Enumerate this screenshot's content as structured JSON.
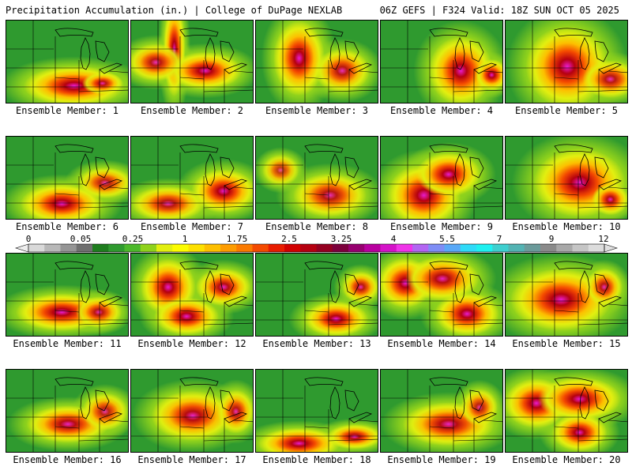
{
  "header": {
    "title": "Precipitation Accumulation (in.) | College of DuPage NEXLAB",
    "run_info": "06Z GEFS | F324 Valid: 18Z SUN OCT 05 2025"
  },
  "colorbar": {
    "tick_labels": [
      "0",
      "0.05",
      "0.25",
      "1",
      "1.75",
      "2.5",
      "3.25",
      "4",
      "5.5",
      "7",
      "9",
      "12"
    ],
    "colors": [
      "#d9d9d9",
      "#b8b8b8",
      "#959595",
      "#6f6f6f",
      "#1e7d1e",
      "#2f9a2f",
      "#4cb82b",
      "#8fd21c",
      "#e2ef10",
      "#fcfc00",
      "#fde000",
      "#fdbf00",
      "#fd9c00",
      "#fb7a00",
      "#f44a00",
      "#e81c00",
      "#d10000",
      "#b50010",
      "#940020",
      "#7c003c",
      "#96006f",
      "#b8009f",
      "#d413c8",
      "#ef34e8",
      "#b265f2",
      "#7e8df5",
      "#59a8f7",
      "#2fdaf8",
      "#1ff0f0",
      "#3ecfcf",
      "#53b3b3",
      "#6b9a9a",
      "#8a8a8a",
      "#a8a8a8",
      "#c5c5c5",
      "#dcdcdc"
    ]
  },
  "panels": [
    {
      "label": "Ensemble Member: 1"
    },
    {
      "label": "Ensemble Member: 2"
    },
    {
      "label": "Ensemble Member: 3"
    },
    {
      "label": "Ensemble Member: 4"
    },
    {
      "label": "Ensemble Member: 5"
    },
    {
      "label": "Ensemble Member: 6"
    },
    {
      "label": "Ensemble Member: 7"
    },
    {
      "label": "Ensemble Member: 8"
    },
    {
      "label": "Ensemble Member: 9"
    },
    {
      "label": "Ensemble Member: 10"
    },
    {
      "label": "Ensemble Member: 11"
    },
    {
      "label": "Ensemble Member: 12"
    },
    {
      "label": "Ensemble Member: 13"
    },
    {
      "label": "Ensemble Member: 14"
    },
    {
      "label": "Ensemble Member: 15"
    },
    {
      "label": "Ensemble Member: 16"
    },
    {
      "label": "Ensemble Member: 17"
    },
    {
      "label": "Ensemble Member: 18"
    },
    {
      "label": "Ensemble Member: 19"
    },
    {
      "label": "Ensemble Member: 20"
    }
  ]
}
